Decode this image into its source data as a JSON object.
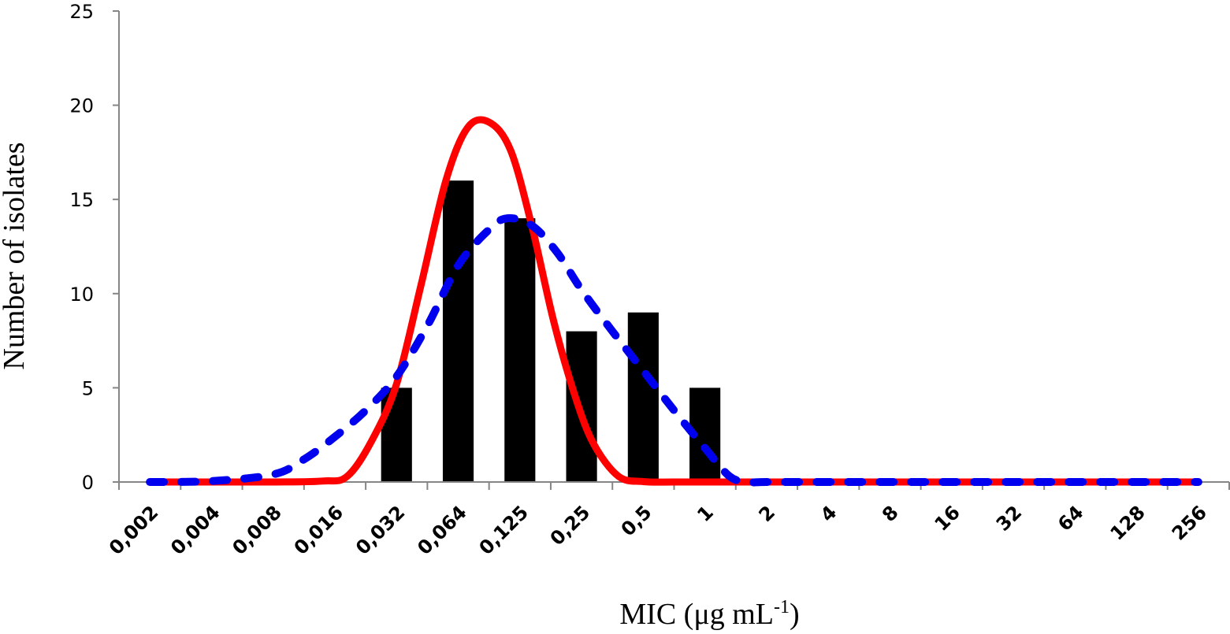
{
  "chart_data": {
    "type": "bar",
    "categories": [
      "0,002",
      "0,004",
      "0,008",
      "0,016",
      "0,032",
      "0,064",
      "0,125",
      "0,25",
      "0,5",
      "1",
      "2",
      "4",
      "8",
      "16",
      "32",
      "64",
      "128",
      "256"
    ],
    "ylim": [
      0,
      25
    ],
    "yticks": [
      "0",
      "5",
      "10",
      "15",
      "20",
      "25"
    ],
    "ylabel": "Number of isolates",
    "xlabel": {
      "main": "MIC (μg mL",
      "sup": "-1",
      "close": ")"
    },
    "series": [
      {
        "name": "isolates",
        "type": "bar",
        "color": "#000000",
        "values": [
          0,
          0,
          0,
          0,
          5,
          16,
          14,
          8,
          9,
          5,
          0,
          0,
          0,
          0,
          0,
          0,
          0,
          0
        ]
      },
      {
        "name": "fit-solid",
        "type": "line",
        "color": "#ff0000",
        "style": "solid",
        "points": [
          [
            0,
            0
          ],
          [
            1,
            0
          ],
          [
            2,
            0
          ],
          [
            2.8,
            0.05
          ],
          [
            3.2,
            0.3
          ],
          [
            3.6,
            2.2
          ],
          [
            4,
            5.2
          ],
          [
            4.4,
            10.5
          ],
          [
            4.8,
            16
          ],
          [
            5.15,
            18.8
          ],
          [
            5.5,
            19.1
          ],
          [
            5.85,
            17.6
          ],
          [
            6.2,
            13.5
          ],
          [
            6.55,
            8.5
          ],
          [
            6.9,
            4.5
          ],
          [
            7.2,
            2
          ],
          [
            7.6,
            0.3
          ],
          [
            8,
            0.02
          ],
          [
            8.5,
            0
          ],
          [
            9,
            0
          ],
          [
            10,
            0
          ],
          [
            11,
            0
          ],
          [
            12,
            0
          ],
          [
            13,
            0
          ],
          [
            14,
            0
          ],
          [
            15,
            0
          ],
          [
            16,
            0
          ],
          [
            17,
            0
          ]
        ]
      },
      {
        "name": "fit-dashed",
        "type": "line",
        "color": "#0000ee",
        "style": "dashed",
        "points": [
          [
            0,
            0
          ],
          [
            1,
            0.05
          ],
          [
            2,
            0.4
          ],
          [
            2.5,
            1.2
          ],
          [
            3,
            2.4
          ],
          [
            3.5,
            3.8
          ],
          [
            4,
            5.6
          ],
          [
            4.5,
            8.3
          ],
          [
            5,
            11.5
          ],
          [
            5.5,
            13.4
          ],
          [
            5.8,
            14
          ],
          [
            6.2,
            13.6
          ],
          [
            6.6,
            12.2
          ],
          [
            7,
            10.2
          ],
          [
            7.5,
            8
          ],
          [
            8,
            5.9
          ],
          [
            8.5,
            3.8
          ],
          [
            9,
            1.8
          ],
          [
            9.4,
            0.3
          ],
          [
            9.7,
            0
          ],
          [
            10,
            0
          ],
          [
            11,
            0
          ],
          [
            12,
            0
          ],
          [
            13,
            0
          ],
          [
            14,
            0
          ],
          [
            15,
            0
          ],
          [
            16,
            0
          ],
          [
            17,
            0
          ]
        ]
      }
    ]
  }
}
